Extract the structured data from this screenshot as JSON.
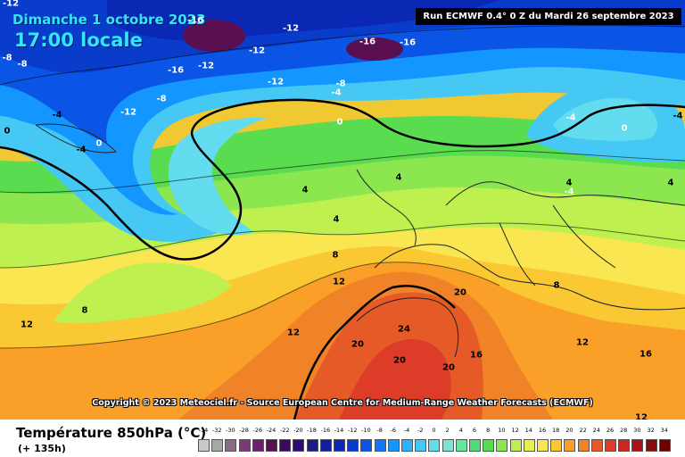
{
  "header": {
    "date": "Dimanche 1 octobre 2023",
    "time": "17:00 locale",
    "run": "Run ECMWF 0.4° 0 Z du Mardi 26 septembre 2023"
  },
  "copyright": "Copyright © 2023 Meteociel.fr - Source European Centre for Medium-Range Weather Forecasts (ECMWF)",
  "footer": {
    "parameter": "Température 850hPa (°C)",
    "lead_time": "(+ 135h)"
  },
  "legend": {
    "values": [
      "-34",
      "-32",
      "-30",
      "-28",
      "-26",
      "-24",
      "-22",
      "-20",
      "-18",
      "-16",
      "-14",
      "-12",
      "-10",
      "-8",
      "-6",
      "-4",
      "-2",
      "0",
      "2",
      "4",
      "6",
      "8",
      "10",
      "12",
      "14",
      "16",
      "18",
      "20",
      "22",
      "24",
      "26",
      "28",
      "30",
      "32",
      "34"
    ],
    "colors": [
      "#c8c8c8",
      "#a8a8a8",
      "#8a6a8a",
      "#7a3a7a",
      "#6a206a",
      "#5a1050",
      "#3c0a5a",
      "#2a0a78",
      "#1a1a8c",
      "#0f1e9c",
      "#0a28b4",
      "#0a3ccc",
      "#0a55e6",
      "#0a78ff",
      "#1496ff",
      "#2ab4ff",
      "#46c8f5",
      "#64dcf0",
      "#78e6d2",
      "#64e6a0",
      "#50dc78",
      "#5adc50",
      "#8ce650",
      "#bef050",
      "#e6f050",
      "#fae650",
      "#fac832",
      "#faa028",
      "#f08228",
      "#e65a28",
      "#dc3c28",
      "#c8281e",
      "#aa1414",
      "#8c0a0a",
      "#6e0000"
    ]
  },
  "map_labels": [
    {
      "text": "-16"
    },
    {
      "text": "-12"
    },
    {
      "text": "-12"
    },
    {
      "text": "-16"
    },
    {
      "text": "-16"
    },
    {
      "text": "-8"
    },
    {
      "text": "-8"
    },
    {
      "text": "-16"
    },
    {
      "text": "-12"
    },
    {
      "text": "-12"
    },
    {
      "text": "-8"
    },
    {
      "text": "-4"
    },
    {
      "text": "-8"
    },
    {
      "text": "-12"
    },
    {
      "text": "-4"
    },
    {
      "text": "0"
    },
    {
      "text": "-4"
    },
    {
      "text": "0"
    },
    {
      "text": "0"
    },
    {
      "text": "-4"
    },
    {
      "text": "-4"
    },
    {
      "text": "0"
    },
    {
      "text": "4"
    },
    {
      "text": "4"
    },
    {
      "text": "4"
    },
    {
      "text": "4"
    },
    {
      "text": "4"
    },
    {
      "text": "8"
    },
    {
      "text": "12"
    },
    {
      "text": "12"
    },
    {
      "text": "8"
    },
    {
      "text": "12"
    },
    {
      "text": "20"
    },
    {
      "text": "24"
    },
    {
      "text": "20"
    },
    {
      "text": "20"
    },
    {
      "text": "20"
    },
    {
      "text": "16"
    },
    {
      "text": "12"
    },
    {
      "text": "16"
    },
    {
      "text": "8"
    },
    {
      "text": "12"
    },
    {
      "text": "-12"
    },
    {
      "text": "-4"
    }
  ]
}
